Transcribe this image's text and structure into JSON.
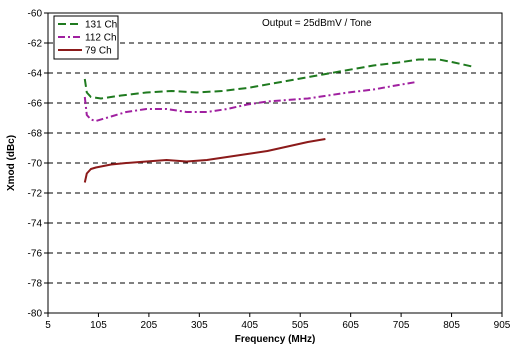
{
  "chart_data": {
    "type": "line",
    "title": "",
    "annotation": "Output = 25dBmV / Tone",
    "xlabel": "Frequency (MHz)",
    "ylabel": "Xmod (dBc)",
    "xlim": [
      5,
      905
    ],
    "ylim": [
      -80,
      -60
    ],
    "xticks": [
      5,
      105,
      205,
      305,
      405,
      505,
      605,
      705,
      805,
      905
    ],
    "yticks": [
      -80,
      -78,
      -76,
      -74,
      -72,
      -70,
      -68,
      -66,
      -64,
      -62,
      -60
    ],
    "grid": "horizontal-dashed",
    "legend_position": "top-left",
    "series": [
      {
        "name": "131 Ch",
        "color": "#1f7a1f",
        "dash": "long-dash",
        "points": [
          [
            78,
            -64.4
          ],
          [
            82,
            -65.3
          ],
          [
            90,
            -65.6
          ],
          [
            110,
            -65.7
          ],
          [
            150,
            -65.5
          ],
          [
            200,
            -65.3
          ],
          [
            250,
            -65.2
          ],
          [
            300,
            -65.3
          ],
          [
            350,
            -65.2
          ],
          [
            400,
            -65.0
          ],
          [
            450,
            -64.7
          ],
          [
            500,
            -64.4
          ],
          [
            550,
            -64.1
          ],
          [
            600,
            -63.8
          ],
          [
            650,
            -63.5
          ],
          [
            700,
            -63.3
          ],
          [
            740,
            -63.1
          ],
          [
            780,
            -63.1
          ],
          [
            810,
            -63.3
          ],
          [
            850,
            -63.6
          ]
        ]
      },
      {
        "name": "112 Ch",
        "color": "#a020a0",
        "dash": "dash-dot",
        "points": [
          [
            78,
            -65.6
          ],
          [
            82,
            -66.8
          ],
          [
            90,
            -67.1
          ],
          [
            100,
            -67.2
          ],
          [
            130,
            -66.9
          ],
          [
            160,
            -66.6
          ],
          [
            200,
            -66.4
          ],
          [
            240,
            -66.4
          ],
          [
            280,
            -66.6
          ],
          [
            320,
            -66.6
          ],
          [
            360,
            -66.4
          ],
          [
            400,
            -66.1
          ],
          [
            440,
            -65.9
          ],
          [
            480,
            -65.8
          ],
          [
            520,
            -65.7
          ],
          [
            560,
            -65.5
          ],
          [
            600,
            -65.3
          ],
          [
            650,
            -65.1
          ],
          [
            700,
            -64.8
          ],
          [
            735,
            -64.6
          ]
        ]
      },
      {
        "name": "79 Ch",
        "color": "#8b1a1a",
        "dash": "solid",
        "points": [
          [
            78,
            -71.3
          ],
          [
            82,
            -70.7
          ],
          [
            90,
            -70.4
          ],
          [
            100,
            -70.3
          ],
          [
            130,
            -70.1
          ],
          [
            160,
            -70.0
          ],
          [
            200,
            -69.9
          ],
          [
            240,
            -69.8
          ],
          [
            280,
            -69.9
          ],
          [
            320,
            -69.8
          ],
          [
            360,
            -69.6
          ],
          [
            400,
            -69.4
          ],
          [
            440,
            -69.2
          ],
          [
            480,
            -68.9
          ],
          [
            520,
            -68.6
          ],
          [
            555,
            -68.4
          ]
        ]
      }
    ]
  }
}
